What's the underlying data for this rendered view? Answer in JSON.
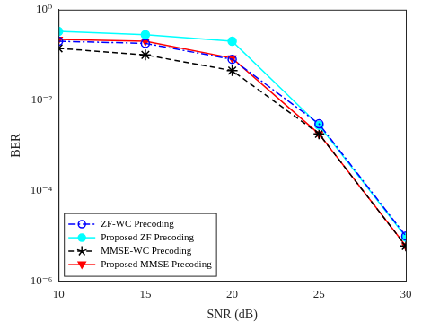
{
  "chart_data": {
    "type": "line",
    "x_label": "SNR (dB)",
    "y_label": "BER",
    "x": [
      10,
      15,
      20,
      25,
      30
    ],
    "xlim": [
      10,
      30
    ],
    "xticks": [
      10,
      15,
      20,
      25,
      30
    ],
    "ylim": [
      1e-06,
      1
    ],
    "yticks": [
      {
        "value": 1e-06,
        "label": "10⁻⁶"
      },
      {
        "value": 0.0001,
        "label": "10⁻⁴"
      },
      {
        "value": 0.01,
        "label": "10⁻²"
      },
      {
        "value": 1,
        "label": "10⁰"
      }
    ],
    "log": "y",
    "grid": false,
    "legend": "lower left",
    "series": [
      {
        "name": "ZF-WC Precoding",
        "color": "#0000ff",
        "marker": "open_circle",
        "line_style": "dashdot",
        "values": [
          0.2,
          0.18,
          0.08,
          0.003,
          1e-05
        ]
      },
      {
        "name": "Proposed ZF Precoding",
        "color": "#00ffff",
        "marker": "filled_circle",
        "line_style": "solid",
        "values": [
          0.33,
          0.28,
          0.2,
          0.0028,
          9.5e-06
        ]
      },
      {
        "name": "MMSE-WC Precoding",
        "color": "#000000",
        "marker": "star",
        "line_style": "dashed",
        "values": [
          0.14,
          0.1,
          0.045,
          0.0018,
          6e-06
        ]
      },
      {
        "name": "Proposed MMSE Precoding",
        "color": "#ff0000",
        "marker": "triangle_down",
        "line_style": "solid",
        "values": [
          0.22,
          0.2,
          0.085,
          0.0018,
          6e-06
        ]
      }
    ]
  }
}
